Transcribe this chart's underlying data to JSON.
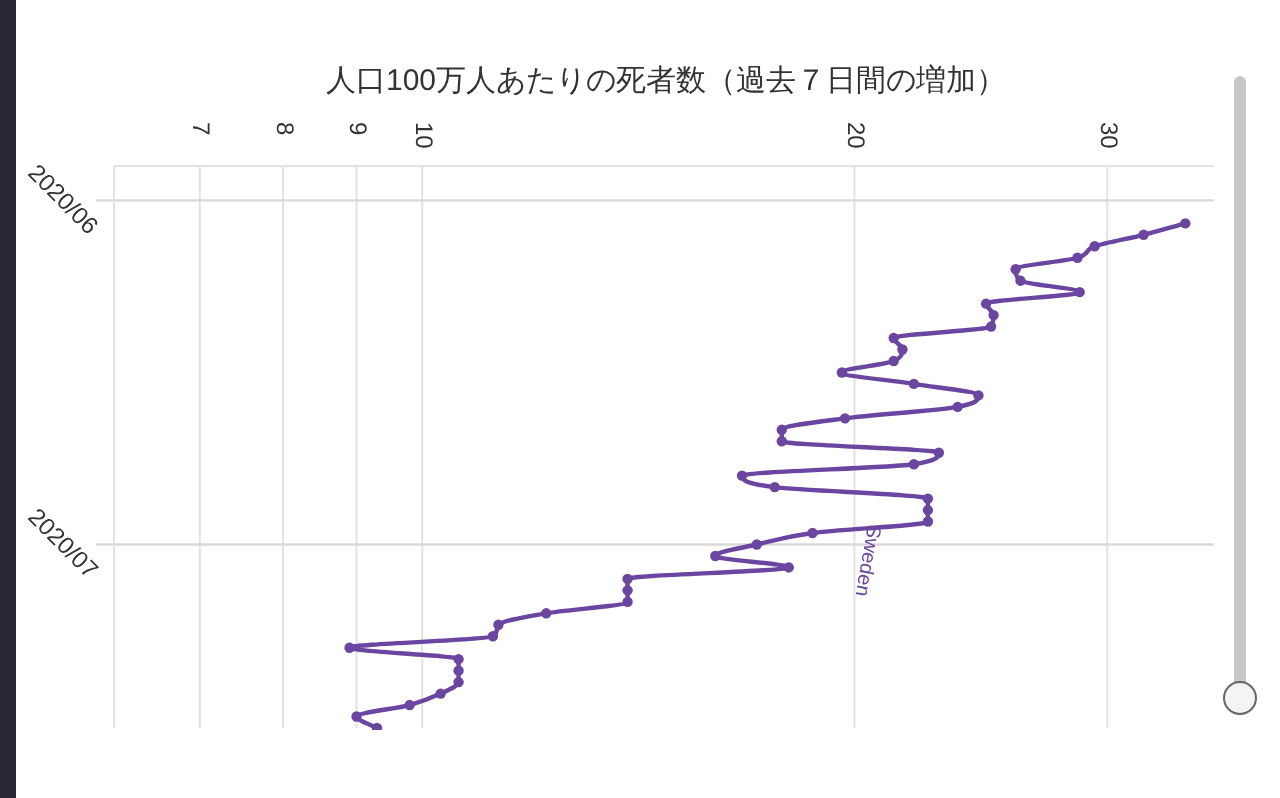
{
  "chart_data": {
    "type": "line",
    "orientation": "horizontal",
    "title": "人口100万人あたりの死者数（過去７日間の増加）",
    "x": [
      "2020-06-03",
      "2020-06-04",
      "2020-06-05",
      "2020-06-06",
      "2020-06-07",
      "2020-06-08",
      "2020-06-09",
      "2020-06-10",
      "2020-06-11",
      "2020-06-12",
      "2020-06-13",
      "2020-06-14",
      "2020-06-15",
      "2020-06-16",
      "2020-06-17",
      "2020-06-18",
      "2020-06-19",
      "2020-06-20",
      "2020-06-21",
      "2020-06-22",
      "2020-06-23",
      "2020-06-24",
      "2020-06-25",
      "2020-06-26",
      "2020-06-27",
      "2020-06-28",
      "2020-06-29",
      "2020-06-30",
      "2020-07-01",
      "2020-07-02",
      "2020-07-03",
      "2020-07-04",
      "2020-07-05",
      "2020-07-06",
      "2020-07-07",
      "2020-07-08",
      "2020-07-09",
      "2020-07-10",
      "2020-07-11",
      "2020-07-12",
      "2020-07-13",
      "2020-07-14",
      "2020-07-15",
      "2020-07-16",
      "2020-07-17"
    ],
    "series": [
      {
        "name": "Sweden",
        "color": "#6b46a1",
        "values": [
          34.0,
          31.8,
          29.4,
          28.6,
          25.9,
          26.1,
          28.7,
          24.7,
          25.0,
          24.9,
          21.3,
          21.6,
          21.3,
          19.6,
          22.0,
          24.4,
          23.6,
          19.7,
          17.8,
          17.8,
          22.9,
          22.0,
          16.7,
          17.6,
          22.5,
          22.5,
          22.5,
          18.7,
          17.1,
          16.0,
          18.0,
          13.9,
          13.9,
          13.9,
          12.2,
          11.3,
          11.2,
          8.9,
          10.6,
          10.6,
          10.6,
          10.3,
          9.8,
          9.0,
          9.3
        ]
      }
    ],
    "ylim": [
      "2020-07-17",
      "2020-05-29"
    ],
    "yticks": [
      {
        "value": "2020-06-01",
        "label": "2020/06"
      },
      {
        "value": "2020-07-01",
        "label": "2020/07"
      }
    ],
    "log": "x",
    "xlim": [
      6.1,
      35.6
    ],
    "xticks": [
      7,
      8,
      9,
      10,
      20,
      30
    ],
    "grid": true,
    "marker": "circle"
  }
}
